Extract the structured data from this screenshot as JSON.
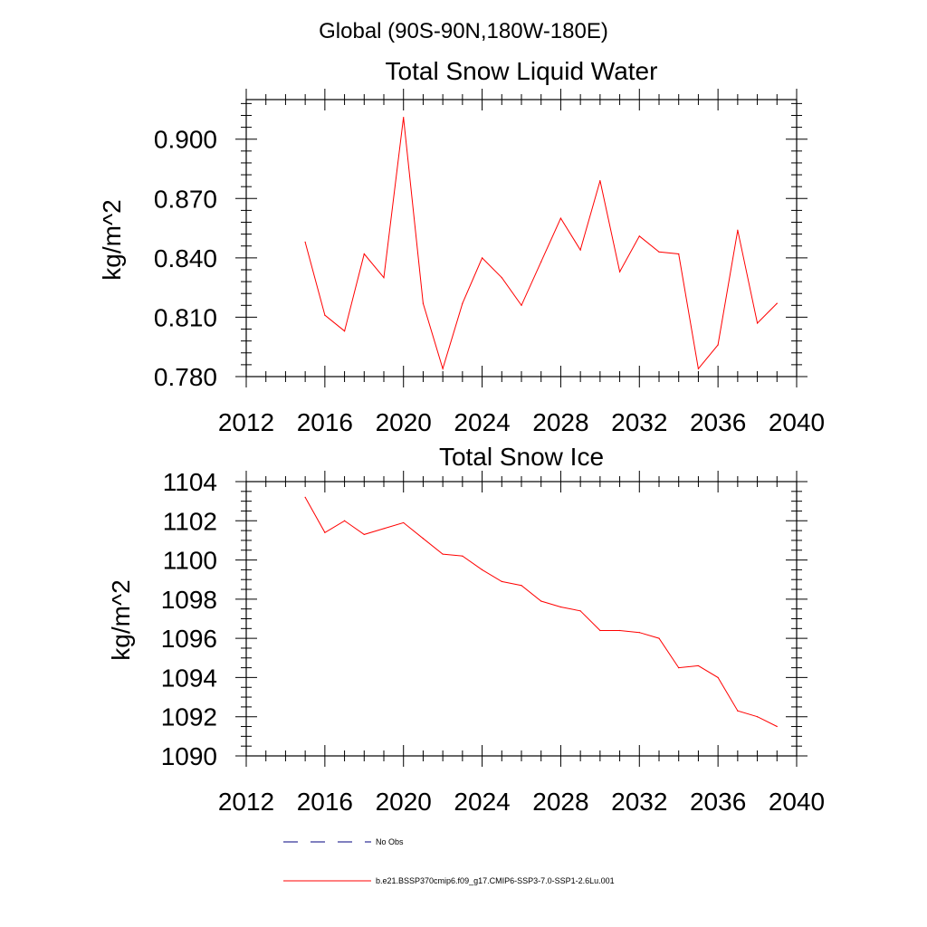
{
  "header": {
    "region": "Global (90S-90N,180W-180E)"
  },
  "legend": {
    "obs_label": "No Obs",
    "case_label": "b.e21.BSSP370cmip6.f09_g17.CMIP6-SSP3-7.0-SSP1-2.6Lu.001"
  },
  "colors": {
    "series": "#ff0000",
    "axis": "#000000",
    "obs": "#00007f"
  },
  "chart_data": [
    {
      "type": "line",
      "title": "Total Snow Liquid Water",
      "xlabel": "",
      "ylabel": "kg/m^2",
      "xlim": [
        2012,
        2040
      ],
      "ylim": [
        0.78,
        0.92
      ],
      "xticks": [
        "2012",
        "2016",
        "2020",
        "2024",
        "2028",
        "2032",
        "2036",
        "2040"
      ],
      "yticks": [
        "0.780",
        "0.810",
        "0.840",
        "0.870",
        "0.900"
      ],
      "grid": false,
      "x": [
        2015,
        2016,
        2017,
        2018,
        2019,
        2020,
        2021,
        2022,
        2023,
        2024,
        2025,
        2026,
        2027,
        2028,
        2029,
        2030,
        2031,
        2032,
        2033,
        2034,
        2035,
        2036,
        2037,
        2038,
        2039
      ],
      "values": [
        0.848,
        0.811,
        0.803,
        0.842,
        0.83,
        0.911,
        0.817,
        0.784,
        0.817,
        0.84,
        0.83,
        0.816,
        0.838,
        0.86,
        0.844,
        0.879,
        0.833,
        0.851,
        0.843,
        0.842,
        0.784,
        0.796,
        0.854,
        0.807,
        0.817
      ]
    },
    {
      "type": "line",
      "title": "Total Snow Ice",
      "xlabel": "",
      "ylabel": "kg/m^2",
      "xlim": [
        2012,
        2040
      ],
      "ylim": [
        1090,
        1104
      ],
      "xticks": [
        "2012",
        "2016",
        "2020",
        "2024",
        "2028",
        "2032",
        "2036",
        "2040"
      ],
      "yticks": [
        "1090",
        "1092",
        "1094",
        "1096",
        "1098",
        "1100",
        "1102",
        "1104"
      ],
      "grid": false,
      "x": [
        2015,
        2016,
        2017,
        2018,
        2019,
        2020,
        2021,
        2022,
        2023,
        2024,
        2025,
        2026,
        2027,
        2028,
        2029,
        2030,
        2031,
        2032,
        2033,
        2034,
        2035,
        2036,
        2037,
        2038,
        2039
      ],
      "values": [
        1103.2,
        1101.4,
        1102.0,
        1101.3,
        1101.6,
        1101.9,
        1101.1,
        1100.3,
        1100.2,
        1099.5,
        1098.9,
        1098.7,
        1097.9,
        1097.6,
        1097.4,
        1096.4,
        1096.4,
        1096.3,
        1096.0,
        1094.5,
        1094.6,
        1094.0,
        1092.3,
        1092.0,
        1091.5
      ]
    }
  ]
}
